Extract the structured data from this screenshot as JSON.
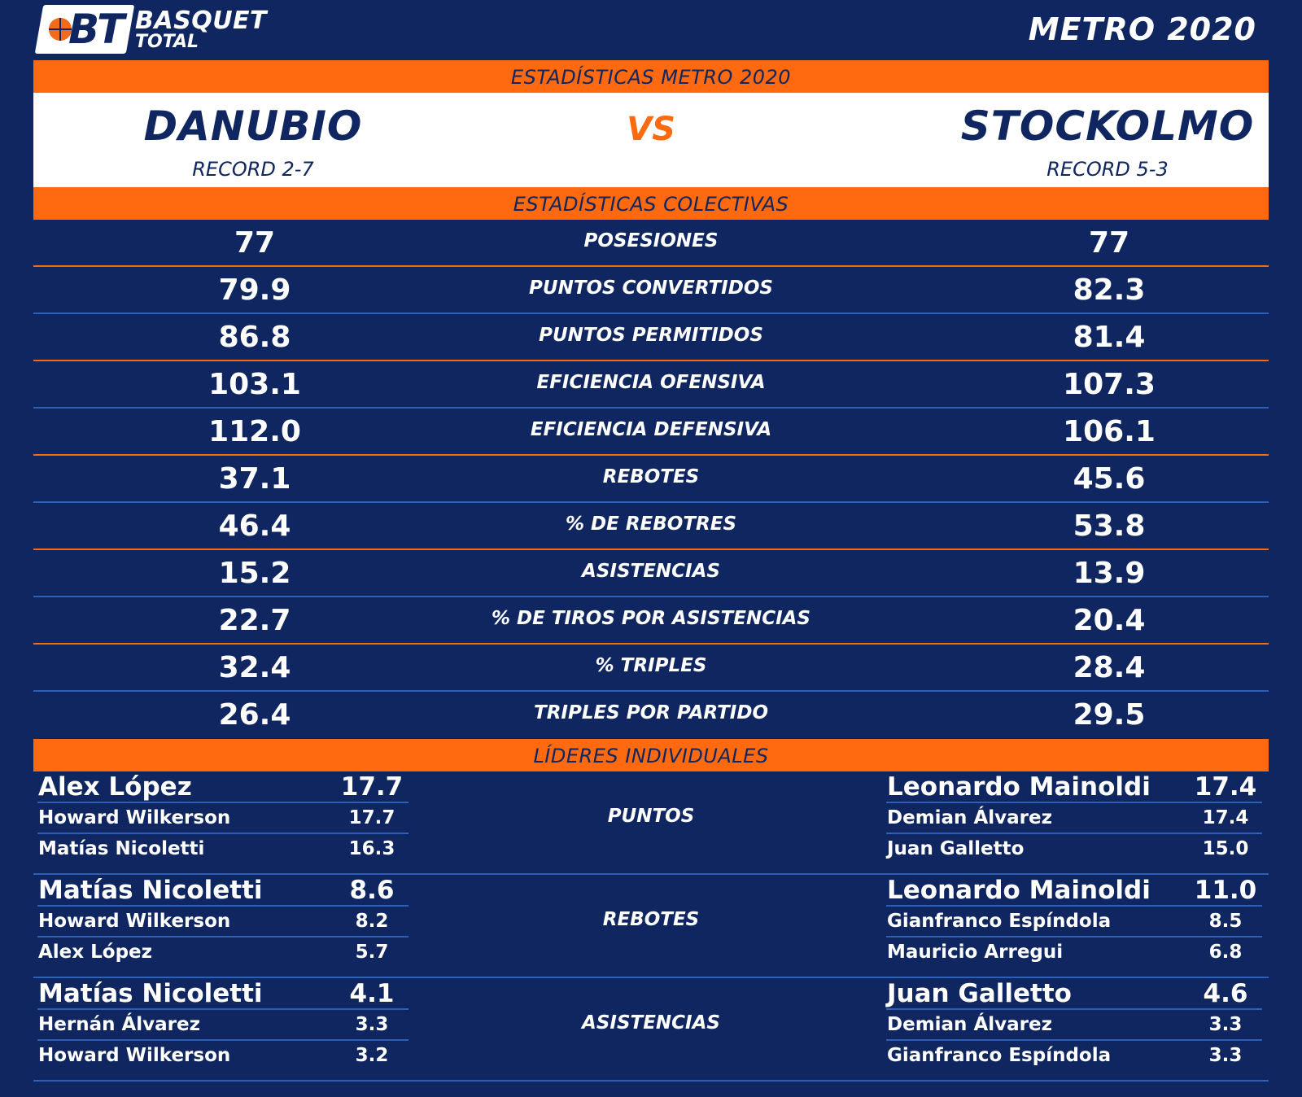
{
  "header": {
    "logo_mark": "BT",
    "logo_word1": "BASQUET",
    "logo_word2": "TOTAL",
    "season": "METRO 2020"
  },
  "bands": {
    "top": "ESTADÍSTICAS METRO 2020",
    "collective": "ESTADÍSTICAS COLECTIVAS",
    "leaders": "LÍDERES INDIVIDUALES"
  },
  "teams": {
    "home": {
      "name": "DANUBIO",
      "record": "RECORD 2-7"
    },
    "away": {
      "name": "STOCKOLMO",
      "record": "RECORD 5-3"
    },
    "vs": "VS"
  },
  "stats": [
    {
      "label": "POSESIONES",
      "home": "77",
      "away": "77"
    },
    {
      "label": "PUNTOS CONVERTIDOS",
      "home": "79.9",
      "away": "82.3"
    },
    {
      "label": "PUNTOS PERMITIDOS",
      "home": "86.8",
      "away": "81.4"
    },
    {
      "label": "EFICIENCIA OFENSIVA",
      "home": "103.1",
      "away": "107.3"
    },
    {
      "label": "EFICIENCIA DEFENSIVA",
      "home": "112.0",
      "away": "106.1"
    },
    {
      "label": "REBOTES",
      "home": "37.1",
      "away": "45.6"
    },
    {
      "label": "% DE REBOTRES",
      "home": "46.4",
      "away": "53.8"
    },
    {
      "label": "ASISTENCIAS",
      "home": "15.2",
      "away": "13.9"
    },
    {
      "label": "% DE TIROS POR ASISTENCIAS",
      "home": "22.7",
      "away": "20.4"
    },
    {
      "label": "% TRIPLES",
      "home": "32.4",
      "away": "28.4"
    },
    {
      "label": "TRIPLES POR PARTIDO",
      "home": "26.4",
      "away": "29.5"
    }
  ],
  "leaders": [
    {
      "category": "PUNTOS",
      "home": [
        {
          "name": "Alex López",
          "value": "17.7"
        },
        {
          "name": "Howard Wilkerson",
          "value": "17.7"
        },
        {
          "name": "Matías Nicoletti",
          "value": "16.3"
        }
      ],
      "away": [
        {
          "name": "Leonardo Mainoldi",
          "value": "17.4"
        },
        {
          "name": "Demian Álvarez",
          "value": "17.4"
        },
        {
          "name": "Juan Galletto",
          "value": "15.0"
        }
      ]
    },
    {
      "category": "REBOTES",
      "home": [
        {
          "name": "Matías Nicoletti",
          "value": "8.6"
        },
        {
          "name": "Howard Wilkerson",
          "value": "8.2"
        },
        {
          "name": "Alex López",
          "value": "5.7"
        }
      ],
      "away": [
        {
          "name": "Leonardo Mainoldi",
          "value": "11.0"
        },
        {
          "name": "Gianfranco Espíndola",
          "value": "8.5"
        },
        {
          "name": "Mauricio Arregui",
          "value": "6.8"
        }
      ]
    },
    {
      "category": "ASISTENCIAS",
      "home": [
        {
          "name": "Matías Nicoletti",
          "value": "4.1"
        },
        {
          "name": "Hernán Álvarez",
          "value": "3.3"
        },
        {
          "name": "Howard Wilkerson",
          "value": "3.2"
        }
      ],
      "away": [
        {
          "name": "Juan Galletto",
          "value": "4.6"
        },
        {
          "name": "Demian Álvarez",
          "value": "3.3"
        },
        {
          "name": "Gianfranco Espíndola",
          "value": "3.3"
        }
      ]
    }
  ],
  "colors": {
    "background": "#0f2660",
    "accent": "#ff6a10",
    "divider_blue": "#2f5fb4"
  }
}
